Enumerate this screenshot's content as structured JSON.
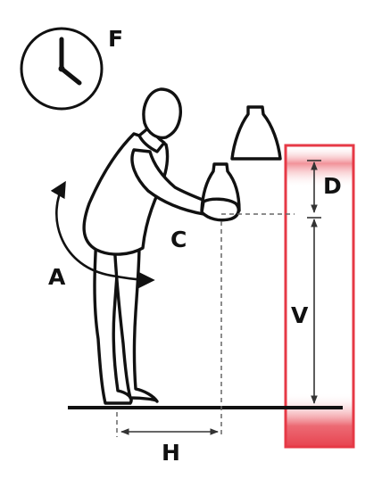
{
  "labels": {
    "frequency": "F",
    "asymmetry": "A",
    "coupling": "C",
    "horizontal": "H",
    "vertical": "V",
    "distance": "D"
  },
  "colors": {
    "highlight": "#e63946",
    "ink": "#111111"
  },
  "icons": {
    "clock": "clock-icon"
  }
}
